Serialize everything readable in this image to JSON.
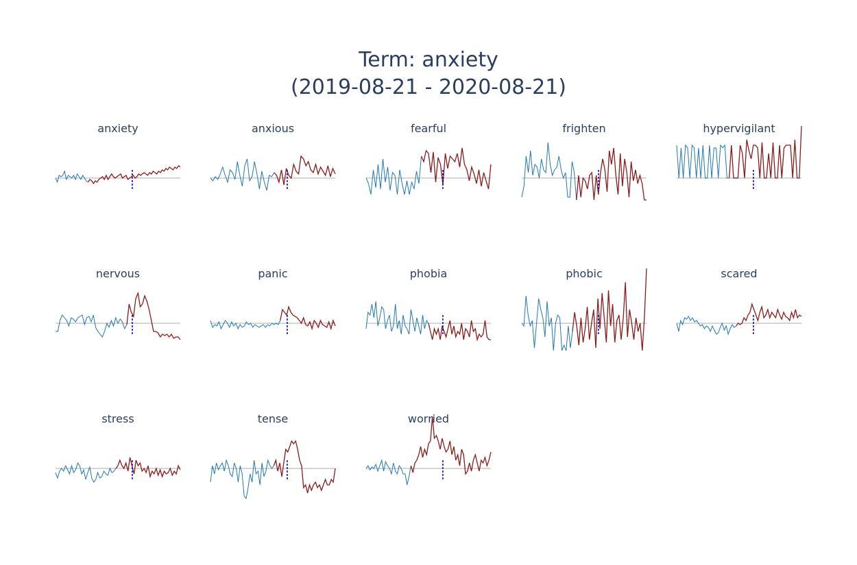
{
  "header": {
    "title_line1": "Term: anxiety",
    "title_line2": "(2019-08-21 - 2020-08-21)"
  },
  "colors": {
    "before": "#1f77b4",
    "after": "#8b1a1a",
    "baseline": "#c8c8c8",
    "marker": "#0000cc",
    "title": "#2a3f5f"
  },
  "chart_data": [
    {
      "type": "line",
      "title": "anxiety",
      "grid": false,
      "split_index": 18,
      "values": [
        0,
        -3,
        2,
        1,
        2,
        5,
        -1,
        2,
        1,
        0,
        2,
        -1,
        3,
        1,
        -1,
        2,
        0,
        -2,
        -3,
        -1,
        -2,
        -4,
        -2,
        -3,
        -1,
        0,
        1,
        -1,
        2,
        -1,
        1,
        3,
        1,
        0,
        1,
        2,
        3,
        0,
        1,
        2,
        -1,
        0,
        1,
        2,
        0,
        1,
        3,
        2,
        3,
        4,
        3,
        2,
        4,
        3,
        5,
        4,
        3,
        5,
        4,
        6,
        5,
        7,
        6,
        8,
        7,
        6,
        8,
        7,
        9,
        8
      ]
    },
    {
      "type": "line",
      "title": "anxious",
      "grid": false,
      "split_index": 26,
      "values": [
        0,
        -2,
        1,
        -1,
        3,
        8,
        2,
        -3,
        6,
        4,
        -1,
        12,
        2,
        -6,
        9,
        14,
        -2,
        1,
        12,
        3,
        -8,
        5,
        -3,
        -9,
        2,
        1,
        4,
        2,
        -3,
        6,
        -5,
        7,
        2,
        0,
        10,
        5,
        3,
        16,
        14,
        9,
        12,
        6,
        4,
        10,
        3,
        8,
        5,
        2,
        9,
        1,
        7,
        3
      ]
    },
    {
      "type": "line",
      "title": "fearful",
      "grid": false,
      "split_index": 23,
      "values": [
        0,
        -4,
        -12,
        6,
        -7,
        10,
        -8,
        14,
        -3,
        8,
        -9,
        4,
        2,
        -12,
        6,
        -4,
        -12,
        -2,
        -12,
        -3,
        -8,
        5,
        -4,
        16,
        12,
        20,
        18,
        4,
        19,
        -3,
        15,
        10,
        -5,
        18,
        7,
        16,
        14,
        12,
        18,
        8,
        22,
        10,
        6,
        -2,
        8,
        3,
        -4,
        6,
        -6,
        4,
        -2,
        -8,
        10
      ]
    },
    {
      "type": "line",
      "title": "frighten",
      "grid": false,
      "split_index": 25,
      "values": [
        -14,
        -6,
        16,
        4,
        20,
        2,
        10,
        8,
        0,
        14,
        6,
        4,
        26,
        10,
        2,
        6,
        8,
        16,
        6,
        0,
        4,
        -14,
        -14,
        12,
        4,
        -16,
        2,
        -14,
        0,
        -2,
        -8,
        2,
        4,
        -16,
        2,
        -12,
        4,
        14,
        6,
        -10,
        20,
        10,
        22,
        2,
        -12,
        18,
        -6,
        14,
        4,
        -14,
        12,
        -2,
        6,
        -4,
        2,
        -4,
        -16,
        -16
      ]
    },
    {
      "type": "line",
      "title": "hypervigilant",
      "grid": false,
      "split_index": 24,
      "values": [
        24,
        0,
        22,
        0,
        24,
        22,
        0,
        24,
        22,
        0,
        22,
        0,
        24,
        0,
        0,
        24,
        0,
        22,
        22,
        0,
        24,
        22,
        24,
        0,
        0,
        24,
        0,
        0,
        0,
        24,
        18,
        0,
        28,
        20,
        14,
        24,
        24,
        22,
        0,
        26,
        0,
        0,
        18,
        0,
        26,
        0,
        0,
        24,
        0,
        22,
        24,
        24,
        24,
        0,
        28,
        0,
        0,
        38
      ]
    },
    {
      "type": "line",
      "title": "nervous",
      "grid": false,
      "split_index": 32,
      "values": [
        -6,
        -6,
        2,
        6,
        4,
        2,
        -2,
        4,
        3,
        1,
        4,
        5,
        6,
        -1,
        4,
        5,
        1,
        6,
        -3,
        -6,
        -8,
        -10,
        -6,
        0,
        -3,
        2,
        -2,
        4,
        0,
        3,
        1,
        -4,
        -1,
        14,
        8,
        5,
        18,
        22,
        12,
        14,
        20,
        16,
        10,
        2,
        -6,
        -6,
        -7,
        -10,
        -8,
        -9,
        -8,
        -10,
        -8,
        -11,
        -10,
        -10,
        -12
      ]
    },
    {
      "type": "line",
      "title": "panic",
      "grid": false,
      "split_index": 33,
      "values": [
        2,
        -3,
        -1,
        -2,
        1,
        -4,
        -1,
        2,
        0,
        -3,
        1,
        -2,
        0,
        -4,
        -1,
        -3,
        -2,
        1,
        -1,
        0,
        -3,
        -1,
        -2,
        -3,
        -2,
        -1,
        -3,
        -1,
        -2,
        0,
        -1,
        0,
        -1,
        2,
        10,
        8,
        6,
        12,
        8,
        6,
        5,
        4,
        2,
        0,
        4,
        -1,
        -2,
        1,
        -4,
        2,
        0,
        -3,
        2,
        -1,
        -2,
        -3,
        1,
        -4,
        2,
        -2
      ]
    },
    {
      "type": "line",
      "title": "phobia",
      "grid": false,
      "split_index": 32,
      "values": [
        -4,
        8,
        6,
        14,
        4,
        16,
        -2,
        4,
        12,
        10,
        -4,
        2,
        6,
        -6,
        -2,
        14,
        -4,
        2,
        -8,
        6,
        -2,
        -4,
        -8,
        10,
        2,
        -6,
        4,
        -2,
        -8,
        6,
        -4,
        2,
        0,
        -6,
        -12,
        -4,
        -8,
        -4,
        -12,
        -2,
        -6,
        -10,
        -4,
        2,
        -8,
        -2,
        -10,
        -6,
        -8,
        0,
        -12,
        -4,
        -6,
        -10,
        2,
        -6,
        -4,
        -12,
        -8,
        -10,
        -8,
        2,
        -10,
        -12,
        -12
      ]
    },
    {
      "type": "line",
      "title": "phobic",
      "grid": false,
      "split_index": 24,
      "values": [
        0,
        -2,
        20,
        6,
        -2,
        2,
        -18,
        0,
        18,
        10,
        4,
        -10,
        16,
        -2,
        4,
        -20,
        0,
        6,
        4,
        -20,
        -16,
        -20,
        -2,
        -18,
        -6,
        8,
        -2,
        -16,
        4,
        -14,
        -4,
        12,
        -12,
        0,
        10,
        -18,
        18,
        -4,
        22,
        4,
        -14,
        24,
        -2,
        14,
        -14,
        2,
        6,
        -12,
        4,
        30,
        -10,
        10,
        0,
        -12,
        4,
        -6,
        0,
        -20,
        4,
        40
      ]
    },
    {
      "type": "line",
      "title": "scared",
      "grid": false,
      "split_index": 30,
      "values": [
        0,
        -6,
        2,
        -1,
        4,
        3,
        5,
        2,
        4,
        1,
        2,
        0,
        -2,
        -1,
        -4,
        -2,
        -3,
        -6,
        -2,
        -5,
        -8,
        -7,
        -3,
        0,
        -5,
        -2,
        -8,
        -4,
        -1,
        -3,
        -2,
        0,
        -1,
        0,
        4,
        2,
        6,
        8,
        14,
        10,
        6,
        2,
        8,
        12,
        4,
        6,
        10,
        4,
        8,
        6,
        4,
        10,
        6,
        3,
        8,
        5,
        4,
        2,
        8,
        4,
        10,
        4,
        6,
        5
      ]
    },
    {
      "type": "line",
      "title": "stress",
      "grid": false,
      "split_index": 30,
      "values": [
        -3,
        -7,
        -2,
        0,
        -2,
        2,
        -1,
        -4,
        2,
        -3,
        -1,
        4,
        2,
        -4,
        -1,
        -8,
        -3,
        1,
        -7,
        -10,
        -8,
        -3,
        -7,
        -6,
        -2,
        -4,
        -5,
        0,
        -3,
        -2,
        0,
        2,
        6,
        2,
        0,
        4,
        -2,
        8,
        2,
        -4,
        6,
        2,
        4,
        -2,
        0,
        -3,
        2,
        -6,
        -2,
        -4,
        0,
        -5,
        -1,
        -6,
        -2,
        -4,
        -3,
        0,
        -5,
        -2,
        -4,
        2,
        -1
      ]
    },
    {
      "type": "line",
      "title": "tense",
      "grid": false,
      "split_index": 32,
      "values": [
        -10,
        2,
        -4,
        4,
        -1,
        2,
        4,
        -2,
        6,
        2,
        -4,
        -6,
        4,
        0,
        -10,
        2,
        -4,
        -20,
        -22,
        -14,
        -4,
        -10,
        6,
        -4,
        -2,
        -12,
        4,
        -6,
        -2,
        6,
        2,
        0,
        2,
        6,
        -2,
        4,
        -6,
        4,
        14,
        12,
        16,
        20,
        18,
        20,
        14,
        6,
        2,
        -14,
        -12,
        -18,
        -12,
        -16,
        -12,
        -10,
        -14,
        -12,
        -16,
        -12,
        -8,
        -12,
        -12,
        -8,
        -10,
        0
      ]
    },
    {
      "type": "line",
      "title": "worried",
      "grid": false,
      "split_index": 23,
      "values": [
        0,
        2,
        -1,
        1,
        0,
        3,
        -2,
        2,
        6,
        -2,
        5,
        2,
        0,
        -4,
        4,
        -2,
        -4,
        2,
        0,
        -4,
        -4,
        -12,
        -6,
        2,
        -3,
        4,
        6,
        10,
        16,
        8,
        14,
        10,
        18,
        20,
        38,
        22,
        24,
        20,
        14,
        22,
        16,
        12,
        14,
        20,
        10,
        16,
        6,
        10,
        2,
        14,
        10,
        -4,
        -2,
        4,
        -2,
        6,
        10,
        4,
        -2,
        6,
        4,
        8,
        2,
        6,
        12
      ]
    }
  ]
}
